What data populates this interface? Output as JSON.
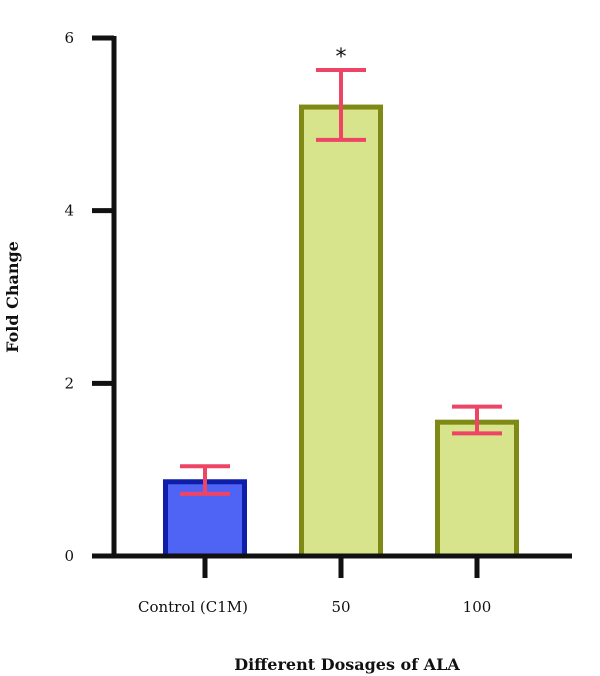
{
  "chart_data": {
    "type": "bar",
    "title": "",
    "xlabel": "Different Dosages of ALA",
    "ylabel": "Fold Change",
    "ylim": [
      0,
      6
    ],
    "yticks": [
      0,
      2,
      4,
      6
    ],
    "y_tick_labels": [
      "0",
      "2",
      "4",
      "6"
    ],
    "grid": false,
    "legend": "none",
    "categories": [
      "Control (C1M)",
      "50",
      "100"
    ],
    "values": [
      0.86,
      5.2,
      1.55
    ],
    "error_low": [
      0.72,
      4.82,
      1.42
    ],
    "error_high": [
      1.04,
      5.63,
      1.73
    ],
    "annotations": [
      "",
      "*",
      ""
    ],
    "colors": {
      "fill": [
        "#4f63f5",
        "#d8e48c",
        "#d8e48c"
      ],
      "border": [
        "#0e1ea8",
        "#7f8a16",
        "#7f8a16"
      ],
      "error_bar": "#ee4466",
      "axis": "#111111"
    }
  }
}
